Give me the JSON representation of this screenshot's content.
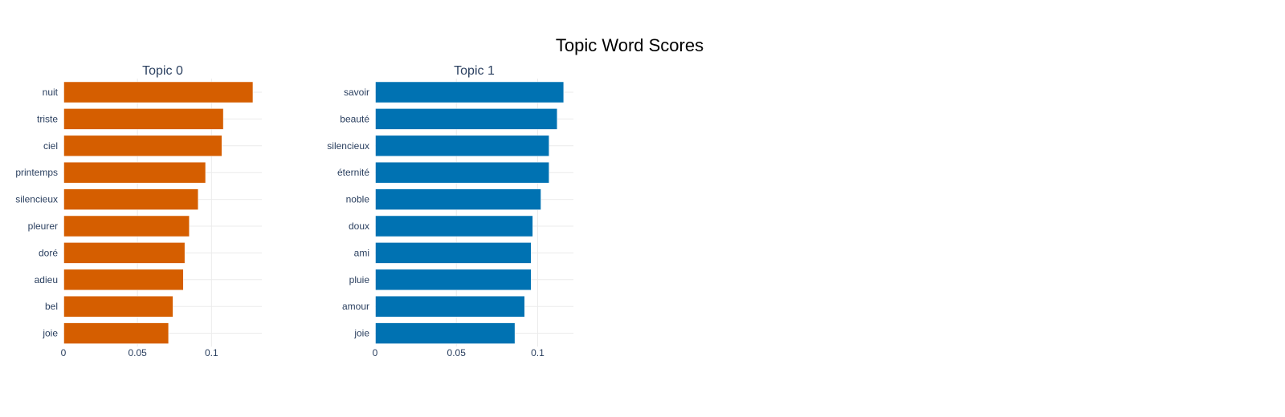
{
  "chart_data": {
    "type": "bar",
    "orientation": "horizontal",
    "title": "Topic Word Scores",
    "grid": true,
    "subplots": [
      {
        "title": "Topic 0",
        "color": "#D55E00",
        "categories": [
          "nuit",
          "triste",
          "ciel",
          "printemps",
          "silencieux",
          "pleurer",
          "doré",
          "adieu",
          "bel",
          "joie"
        ],
        "values": [
          0.128,
          0.108,
          0.107,
          0.096,
          0.091,
          0.085,
          0.082,
          0.081,
          0.074,
          0.071
        ],
        "xlim": [
          0,
          0.134
        ],
        "xticks": [
          "0",
          "0.05",
          "0.1"
        ]
      },
      {
        "title": "Topic 1",
        "color": "#0072B2",
        "categories": [
          "savoir",
          "beauté",
          "silencieux",
          "éternité",
          "noble",
          "doux",
          "ami",
          "pluie",
          "amour",
          "joie"
        ],
        "values": [
          0.116,
          0.112,
          0.107,
          0.107,
          0.102,
          0.097,
          0.096,
          0.096,
          0.092,
          0.086
        ],
        "xlim": [
          0,
          0.122
        ],
        "xticks": [
          "0",
          "0.05",
          "0.1"
        ]
      }
    ]
  }
}
